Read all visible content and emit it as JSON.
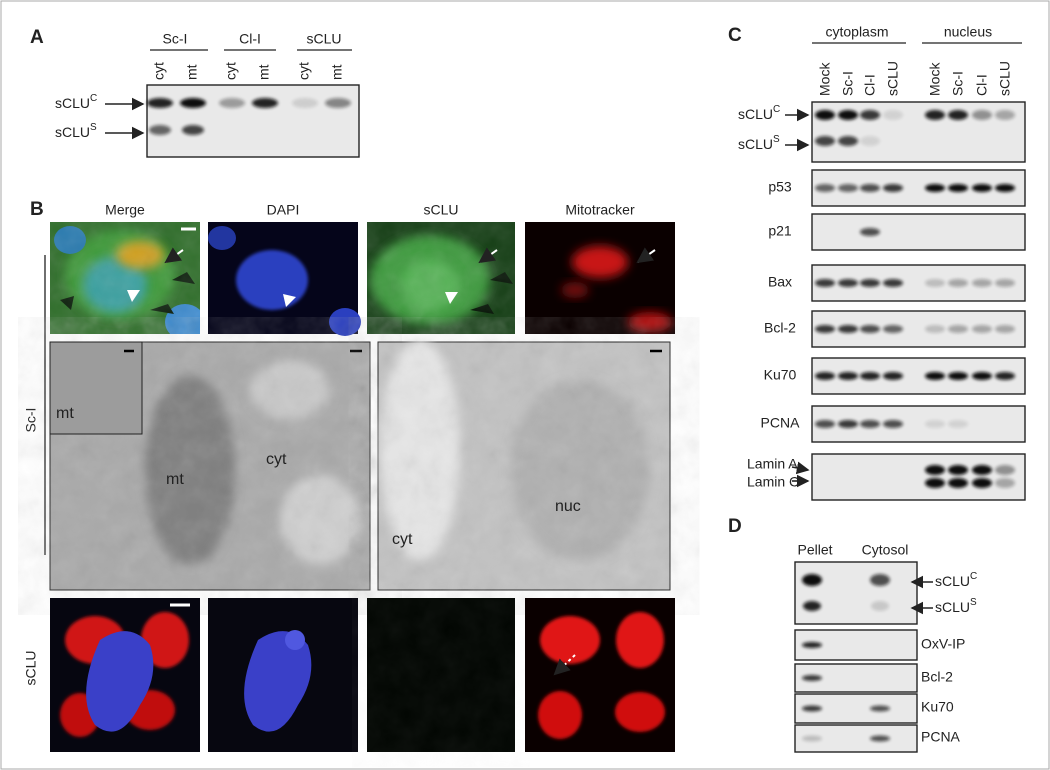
{
  "panel_a": {
    "label": "A",
    "groups": [
      "Sc-I",
      "Cl-I",
      "sCLU"
    ],
    "lanes": [
      "cyt",
      "mt",
      "cyt",
      "mt",
      "cyt",
      "mt"
    ],
    "bands": [
      {
        "name": "sCLU",
        "sup": "C"
      },
      {
        "name": "sCLU",
        "sup": "S"
      }
    ]
  },
  "panel_b": {
    "label": "B",
    "columns": [
      "Merge",
      "DAPI",
      "sCLU",
      "Mitotracker"
    ],
    "rows": [
      "Sc-I",
      "sCLU"
    ],
    "em_labels": [
      "mt",
      "mt",
      "cyt",
      "cyt",
      "nuc"
    ]
  },
  "panel_c": {
    "label": "C",
    "fractions": [
      "cytoplasm",
      "nucleus"
    ],
    "lanes": [
      "Mock",
      "Sc-I",
      "Cl-I",
      "sCLU",
      "Mock",
      "Sc-I",
      "Cl-I",
      "sCLU"
    ],
    "bands": [
      {
        "name": "sCLU",
        "sup": "C"
      },
      {
        "name": "sCLU",
        "sup": "S"
      }
    ],
    "proteins": [
      "p53",
      "p21",
      "Bax",
      "Bcl-2",
      "Ku70",
      "PCNA"
    ],
    "lamins": [
      "Lamin A",
      "Lamin C"
    ]
  },
  "panel_d": {
    "label": "D",
    "fractions": [
      "Pellet",
      "Cytosol"
    ],
    "bands": [
      {
        "name": "sCLU",
        "sup": "C"
      },
      {
        "name": "sCLU",
        "sup": "S"
      }
    ],
    "proteins": [
      "OxV-IP",
      "Bcl-2",
      "Ku70",
      "PCNA"
    ]
  }
}
